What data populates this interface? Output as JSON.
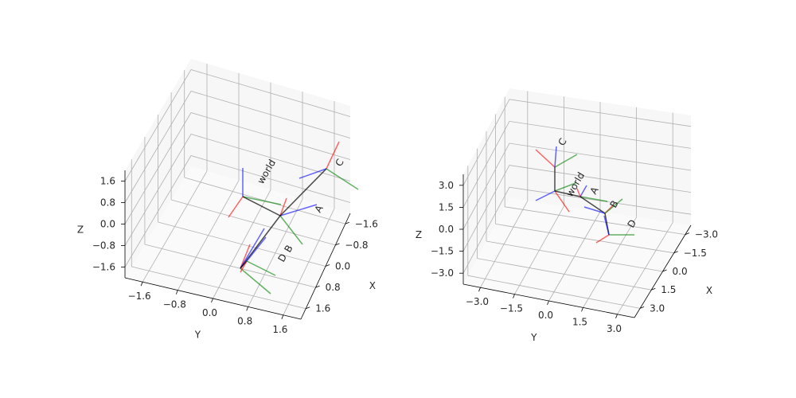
{
  "chart_data": [
    {
      "type": "3d-frames",
      "xlabel": "X",
      "ylabel": "Y",
      "zlabel": "Z",
      "xlim": [
        -2.0,
        2.0
      ],
      "ylim": [
        -2.0,
        2.0
      ],
      "zlim": [
        -2.0,
        2.0
      ],
      "xticks": [
        "−1.6",
        "−0.8",
        "0.0",
        "0.8",
        "1.6"
      ],
      "yticks": [
        "−1.6",
        "−0.8",
        "0.0",
        "0.8",
        "1.6"
      ],
      "zticks": [
        "−1.6",
        "−0.8",
        "0.0",
        "0.8",
        "1.6"
      ],
      "frames": [
        {
          "name": "world",
          "origin": [
            0.0,
            0.0,
            0.0
          ]
        },
        {
          "name": "A",
          "origin": [
            0.3,
            0.9,
            -0.2
          ]
        },
        {
          "name": "C",
          "origin": [
            -1.9,
            0.9,
            0.5
          ]
        },
        {
          "name": "D",
          "origin": [
            1.2,
            0.0,
            -0.8
          ]
        },
        {
          "name": "B",
          "origin": [
            1.1,
            0.1,
            -0.6
          ]
        }
      ],
      "grid": true
    },
    {
      "type": "3d-frames",
      "xlabel": "X",
      "ylabel": "Y",
      "zlabel": "Z",
      "xlim": [
        -3.0,
        3.0
      ],
      "ylim": [
        -3.0,
        3.0
      ],
      "zlim": [
        -3.0,
        3.0
      ],
      "xticks": [
        "−3.0",
        "−1.5",
        "0.0",
        "1.5",
        "3.0"
      ],
      "yticks": [
        "−3.0",
        "−1.5",
        "0.0",
        "1.5",
        "3.0"
      ],
      "zticks": [
        "−3.0",
        "−1.5",
        "0.0",
        "1.5",
        "3.0"
      ],
      "frames": [
        {
          "name": "world",
          "origin": [
            0.0,
            0.0,
            0.0
          ]
        },
        {
          "name": "A",
          "origin": [
            0.1,
            0.6,
            -0.2
          ]
        },
        {
          "name": "C",
          "origin": [
            -0.8,
            -1.2,
            1.4
          ]
        },
        {
          "name": "B",
          "origin": [
            0.9,
            1.1,
            -0.6
          ]
        },
        {
          "name": "D",
          "origin": [
            1.6,
            1.3,
            -0.9
          ]
        }
      ],
      "grid": true
    }
  ],
  "colors": {
    "x_axis": "#ff0000",
    "y_axis": "#008000",
    "z_axis": "#0000ff",
    "link": "#000000",
    "pane": "#f2f2f2"
  }
}
